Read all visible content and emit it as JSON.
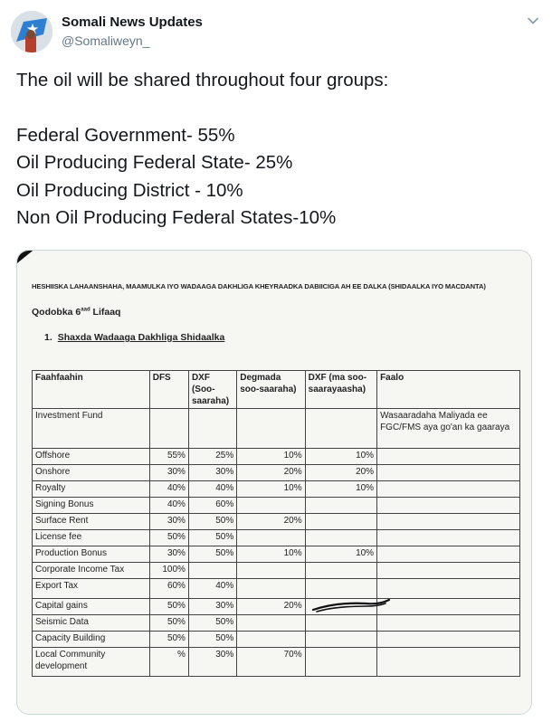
{
  "author": {
    "display_name": "Somali News Updates",
    "handle": "@Somaliweyn_"
  },
  "tweet": {
    "intro": "The oil will be shared throughout four groups:",
    "lines": [
      "Federal Government- 55%",
      "Oil Producing Federal State- 25%",
      "Oil Producing District - 10%",
      "Non Oil Producing Federal States-10%"
    ]
  },
  "document": {
    "header_line": "HESHIISKA LAHAANSHAHA, MAAMULKA IYO WADAAGA DAKHLIGA KHEYRAADKA DABIICIGA AH EE DALKA (SHIDAALKA IYO MACDANTA)",
    "article_prefix": "Qodobka 6",
    "article_sup": "aad",
    "article_suffix": " Lifaaq",
    "section_number": "1.",
    "section_title": "Shaxda Wadaaga Dakhliga Shidaalka",
    "table": {
      "headers": [
        "Faahfaahin",
        "DFS",
        "DXF (Soo-saaraha)",
        "Degmada soo-saaraha)",
        "DXF (ma soo-saarayaasha)",
        "Faalo"
      ],
      "rows": [
        [
          "Investment Fund",
          "",
          "",
          "",
          "",
          "Wasaaradaha Maliyada ee FGC/FMS aya go'an ka gaaraya"
        ],
        [
          "Offshore",
          "55%",
          "25%",
          "10%",
          "10%",
          ""
        ],
        [
          "Onshore",
          "30%",
          "30%",
          "20%",
          "20%",
          ""
        ],
        [
          "Royalty",
          "40%",
          "40%",
          "10%",
          "10%",
          ""
        ],
        [
          "Signing Bonus",
          "40%",
          "60%",
          "",
          "",
          ""
        ],
        [
          "Surface Rent",
          "30%",
          "50%",
          "20%",
          "",
          ""
        ],
        [
          "License fee",
          "50%",
          "50%",
          "",
          "",
          ""
        ],
        [
          "Production Bonus",
          "30%",
          "50%",
          "10%",
          "10%",
          ""
        ],
        [
          "Corporate Income Tax",
          "100%",
          "",
          "",
          "",
          ""
        ],
        [
          "Export Tax",
          "60%",
          "40%",
          "",
          "",
          ""
        ],
        [
          "Capital gains",
          "50%",
          "30%",
          "20%",
          "",
          ""
        ],
        [
          "Seismic Data",
          "50%",
          "50%",
          "",
          "",
          ""
        ],
        [
          "Capacity Building",
          "50%",
          "50%",
          "",
          "",
          ""
        ],
        [
          "Local Community development",
          "%",
          "30%",
          "70%",
          "",
          ""
        ]
      ]
    }
  },
  "icons": {
    "more": "chevron-down-icon",
    "avatar": "avatar-image"
  }
}
